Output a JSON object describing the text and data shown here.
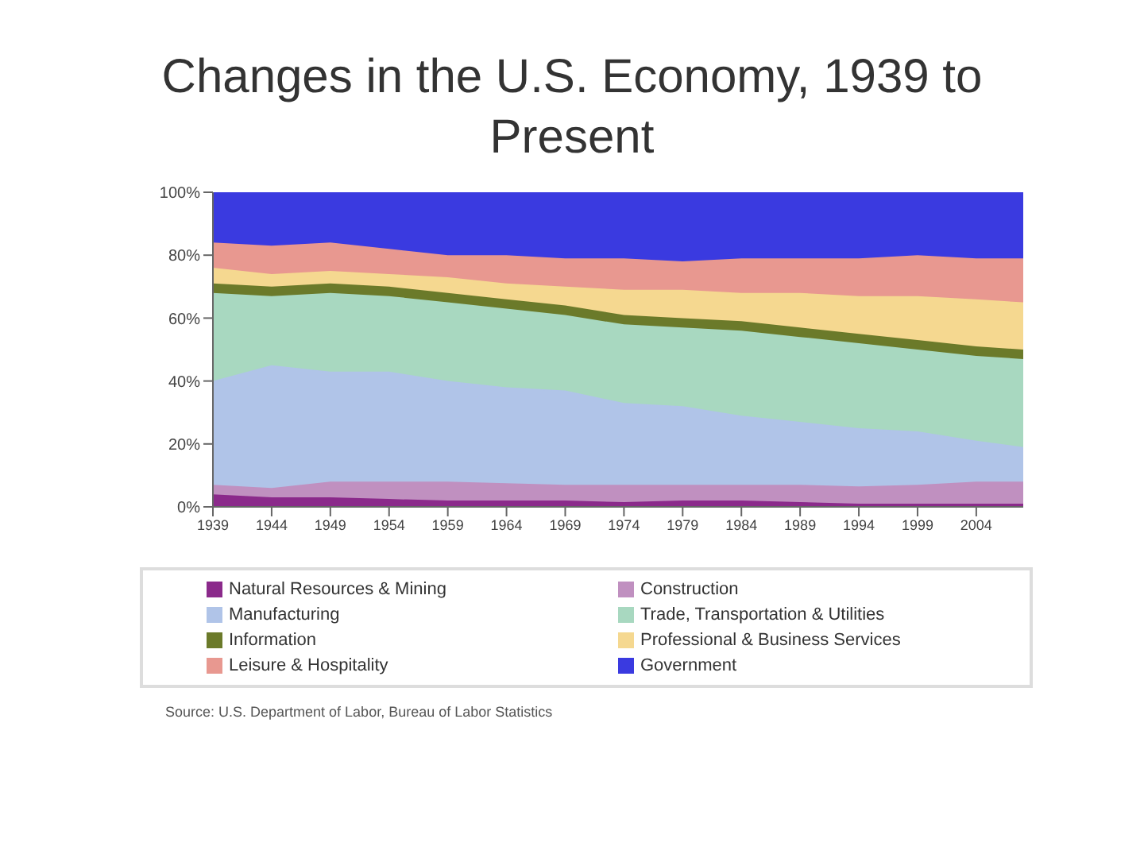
{
  "chart_data": {
    "type": "area",
    "title": "Changes in the U.S. Economy, 1939 to Present",
    "stacked": true,
    "x": [
      1939,
      1944,
      1949,
      1954,
      1959,
      1964,
      1969,
      1974,
      1979,
      1984,
      1989,
      1994,
      1999,
      2004,
      2008
    ],
    "xlim": [
      1939,
      2008
    ],
    "xticks": [
      1939,
      1944,
      1949,
      1954,
      1959,
      1964,
      1969,
      1974,
      1979,
      1984,
      1989,
      1994,
      1999,
      2004
    ],
    "ylim": [
      0,
      100
    ],
    "yticks": [
      {
        "value": 0,
        "label": "0%"
      },
      {
        "value": 20,
        "label": "20%"
      },
      {
        "value": 40,
        "label": "40%"
      },
      {
        "value": 60,
        "label": "60%"
      },
      {
        "value": 80,
        "label": "80%"
      },
      {
        "value": 100,
        "label": "100%"
      }
    ],
    "legend": "bottom",
    "series": [
      {
        "name": "Natural Resources & Mining",
        "color": "#8b2a8b",
        "values": [
          4,
          3,
          3,
          2.5,
          2,
          2,
          2,
          1.5,
          2,
          2,
          1.5,
          1,
          1,
          1,
          1
        ]
      },
      {
        "name": "Construction",
        "color": "#c090c0",
        "values": [
          3,
          3,
          5,
          5.5,
          6,
          5.5,
          5,
          5.5,
          5,
          5,
          5.5,
          5.5,
          6,
          7,
          7
        ]
      },
      {
        "name": "Manufacturing",
        "color": "#b0c4e8",
        "values": [
          33,
          39,
          35,
          35,
          32,
          30.5,
          30,
          26,
          25,
          22,
          20,
          18.5,
          17,
          13,
          11
        ]
      },
      {
        "name": "Trade, Transportation & Utilities",
        "color": "#a8d8c0",
        "values": [
          28,
          22,
          25,
          24,
          25,
          25,
          24,
          25,
          25,
          27,
          27,
          27,
          26,
          27,
          28
        ]
      },
      {
        "name": "Information",
        "color": "#6b7a2a",
        "values": [
          3,
          3,
          3,
          3,
          3,
          3,
          3,
          3,
          3,
          3,
          3,
          3,
          3,
          3,
          3
        ]
      },
      {
        "name": "Professional & Business Services",
        "color": "#f5d890",
        "values": [
          5,
          4,
          4,
          4,
          5,
          5,
          6,
          8,
          9,
          9,
          11,
          12,
          14,
          15,
          15
        ]
      },
      {
        "name": "Leisure & Hospitality",
        "color": "#e89890",
        "values": [
          8,
          9,
          9,
          8,
          7,
          9,
          9,
          10,
          9,
          11,
          11,
          12,
          13,
          13,
          14
        ]
      },
      {
        "name": "Government",
        "color": "#3a3ae0",
        "values": [
          16,
          17,
          16,
          18,
          20,
          20,
          21,
          21,
          22,
          21,
          21,
          21,
          20,
          21,
          21
        ]
      }
    ],
    "annotations": [
      "Source: U.S. Department of Labor, Bureau of Labor Statistics"
    ]
  }
}
